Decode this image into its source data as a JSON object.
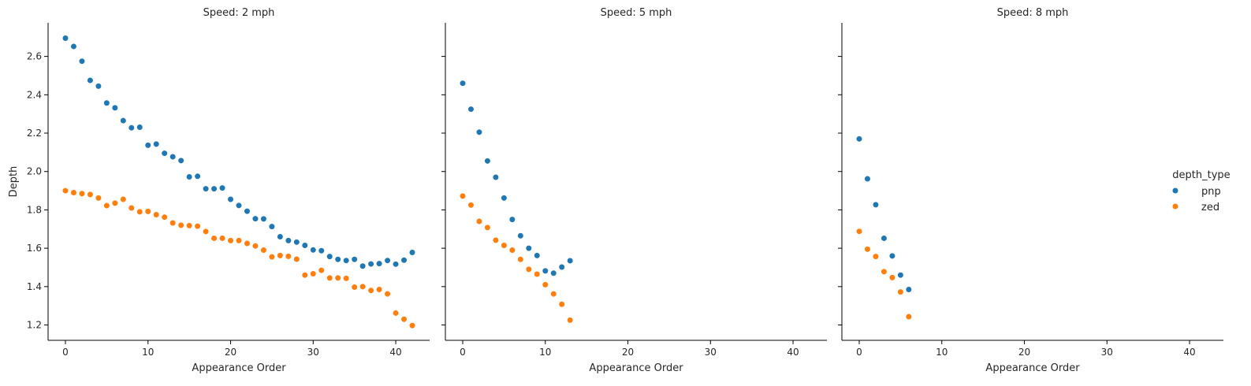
{
  "chart_data": {
    "type": "scatter",
    "legend": {
      "title": "depth_type",
      "placement": "right"
    },
    "series_styles": [
      {
        "name": "pnp",
        "color": "#1f77b4"
      },
      {
        "name": "zed",
        "color": "#ff7f0e"
      }
    ],
    "xlabel": "Appearance Order",
    "ylabel": "Depth",
    "xlim": [
      -2.1,
      44.1
    ],
    "ylim": [
      1.12,
      2.775
    ],
    "xticks": [
      0,
      10,
      20,
      30,
      40
    ],
    "yticks": [
      1.2,
      1.4,
      1.6,
      1.8,
      2.0,
      2.2,
      2.4,
      2.6
    ],
    "ytick_labels": [
      "1.2",
      "1.4",
      "1.6",
      "1.8",
      "2.0",
      "2.2",
      "2.4",
      "2.6"
    ],
    "grid": false,
    "sharey": true,
    "panels": [
      {
        "title": "Speed: 2 mph",
        "series": [
          {
            "name": "pnp",
            "x": [
              0,
              1,
              2,
              3,
              4,
              5,
              6,
              7,
              8,
              9,
              10,
              11,
              12,
              13,
              14,
              15,
              16,
              17,
              18,
              19,
              20,
              21,
              22,
              23,
              24,
              25,
              26,
              27,
              28,
              29,
              30,
              31,
              32,
              33,
              34,
              35,
              36,
              37,
              38,
              39,
              40,
              41,
              42
            ],
            "y": [
              2.695,
              2.652,
              2.575,
              2.475,
              2.445,
              2.357,
              2.332,
              2.265,
              2.228,
              2.231,
              2.137,
              2.143,
              2.095,
              2.077,
              2.057,
              1.972,
              1.975,
              1.91,
              1.91,
              1.914,
              1.855,
              1.823,
              1.793,
              1.754,
              1.753,
              1.713,
              1.66,
              1.64,
              1.632,
              1.615,
              1.591,
              1.587,
              1.557,
              1.542,
              1.536,
              1.542,
              1.507,
              1.518,
              1.52,
              1.536,
              1.517,
              1.538,
              1.578
            ]
          },
          {
            "name": "zed",
            "x": [
              0,
              1,
              2,
              3,
              4,
              5,
              6,
              7,
              8,
              9,
              10,
              11,
              12,
              13,
              14,
              15,
              16,
              17,
              18,
              19,
              20,
              21,
              22,
              23,
              24,
              25,
              26,
              27,
              28,
              29,
              30,
              31,
              32,
              33,
              34,
              35,
              36,
              37,
              38,
              39,
              40,
              41,
              42
            ],
            "y": [
              1.9,
              1.89,
              1.885,
              1.88,
              1.862,
              1.822,
              1.835,
              1.855,
              1.81,
              1.79,
              1.792,
              1.775,
              1.762,
              1.732,
              1.72,
              1.718,
              1.715,
              1.687,
              1.652,
              1.652,
              1.64,
              1.64,
              1.625,
              1.612,
              1.59,
              1.555,
              1.562,
              1.558,
              1.543,
              1.46,
              1.467,
              1.485,
              1.445,
              1.445,
              1.443,
              1.397,
              1.4,
              1.38,
              1.385,
              1.362,
              1.262,
              1.23,
              1.197
            ]
          }
        ]
      },
      {
        "title": "Speed: 5 mph",
        "series": [
          {
            "name": "pnp",
            "x": [
              0,
              1,
              2,
              3,
              4,
              5,
              6,
              7,
              8,
              9,
              10,
              11,
              12,
              13
            ],
            "y": [
              2.46,
              2.325,
              2.205,
              2.055,
              1.97,
              1.862,
              1.75,
              1.665,
              1.6,
              1.562,
              1.482,
              1.47,
              1.502,
              1.535
            ]
          },
          {
            "name": "zed",
            "x": [
              0,
              1,
              2,
              3,
              4,
              5,
              6,
              7,
              8,
              9,
              10,
              11,
              12,
              13
            ],
            "y": [
              1.872,
              1.825,
              1.74,
              1.708,
              1.642,
              1.615,
              1.59,
              1.542,
              1.49,
              1.465,
              1.41,
              1.362,
              1.308,
              1.225
            ]
          }
        ]
      },
      {
        "title": "Speed: 8 mph",
        "series": [
          {
            "name": "pnp",
            "x": [
              0,
              1,
              2,
              3,
              4,
              5,
              6
            ],
            "y": [
              2.17,
              1.962,
              1.827,
              1.652,
              1.56,
              1.46,
              1.385
            ]
          },
          {
            "name": "zed",
            "x": [
              0,
              1,
              2,
              3,
              4,
              5,
              6
            ],
            "y": [
              1.688,
              1.595,
              1.557,
              1.478,
              1.447,
              1.372,
              1.243
            ]
          }
        ]
      }
    ]
  }
}
